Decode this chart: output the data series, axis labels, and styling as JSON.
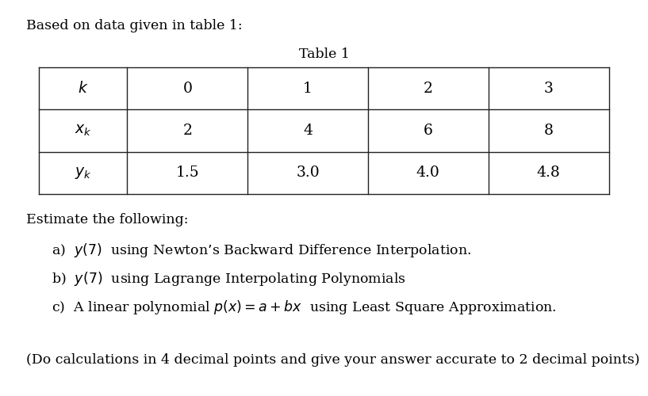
{
  "title_text": "Based on data given in table 1:",
  "table_title": "Table 1",
  "table_row_labels": [
    "$k$",
    "$x_k$",
    "$y_k$"
  ],
  "table_col_data": [
    [
      "0",
      "1",
      "2",
      "3"
    ],
    [
      "2",
      "4",
      "6",
      "8"
    ],
    [
      "1.5",
      "3.0",
      "4.0",
      "4.8"
    ]
  ],
  "estimate_text": "Estimate the following:",
  "item_a": "a)  $y(7)$  using Newton’s Backward Difference Interpolation.",
  "item_b": "b)  $y(7)$  using Lagrange Interpolating Polynomials",
  "item_c": "c)  A linear polynomial $p(x) = a + bx$  using Least Square Approximation.",
  "footer": "(Do calculations in 4 decimal points and give your answer accurate to 2 decimal points)",
  "bg_color": "#ffffff",
  "text_color": "#000000",
  "table_line_color": "#222222",
  "font_size": 12.5
}
